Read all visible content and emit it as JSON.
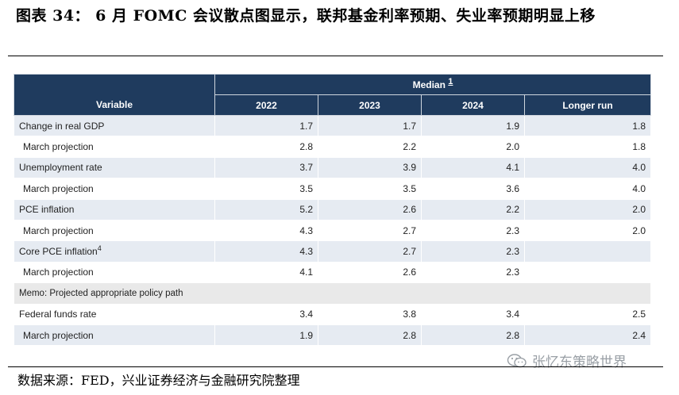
{
  "figure": {
    "title": "图表 34：  6 月 FOMC 会议散点图显示，联邦基金利率预期、失业率预期明显上移",
    "source": "数据来源：FED，兴业证券经济与金融研究院整理",
    "watermark": "张忆东策略世界"
  },
  "table": {
    "variable_header": "Variable",
    "median_header": "Median",
    "median_footnote": "1",
    "columns": [
      "2022",
      "2023",
      "2024",
      "Longer run"
    ],
    "rows": [
      {
        "label": "Change in real GDP",
        "values": [
          "1.7",
          "1.7",
          "1.9",
          "1.8"
        ]
      },
      {
        "label": "March projection",
        "values": [
          "2.8",
          "2.2",
          "2.0",
          "1.8"
        ]
      },
      {
        "label": "Unemployment rate",
        "values": [
          "3.7",
          "3.9",
          "4.1",
          "4.0"
        ]
      },
      {
        "label": "March projection",
        "values": [
          "3.5",
          "3.5",
          "3.6",
          "4.0"
        ]
      },
      {
        "label": "PCE inflation",
        "values": [
          "5.2",
          "2.6",
          "2.2",
          "2.0"
        ]
      },
      {
        "label": "March projection",
        "values": [
          "4.3",
          "2.7",
          "2.3",
          "2.0"
        ]
      },
      {
        "label": "Core PCE inflation",
        "footnote": "4",
        "values": [
          "4.3",
          "2.7",
          "2.3",
          ""
        ]
      },
      {
        "label": "March projection",
        "values": [
          "4.1",
          "2.6",
          "2.3",
          ""
        ]
      },
      {
        "label": "Memo: Projected appropriate policy path"
      },
      {
        "label": "Federal funds rate",
        "values": [
          "3.4",
          "3.8",
          "3.4",
          "2.5"
        ]
      },
      {
        "label": "March projection",
        "values": [
          "1.9",
          "2.8",
          "2.8",
          "2.4"
        ]
      }
    ]
  },
  "colors": {
    "header_bg": "#1f3b5e",
    "shaded_row": "#e6ebf2",
    "memo_row": "#e9e9e9",
    "watermark": "#9aa0a6"
  },
  "icons": [
    "wechat-icon"
  ]
}
